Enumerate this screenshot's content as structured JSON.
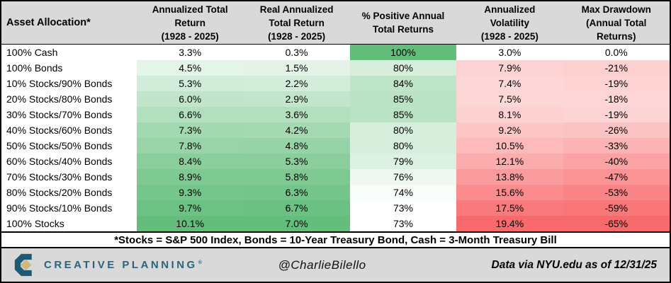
{
  "chart_data": {
    "type": "table",
    "columns": [
      {
        "label": "Asset Allocation*",
        "align": "left",
        "scale": null
      },
      {
        "label": "Annualized Total\nReturn\n(1928 - 2025)",
        "scale": {
          "min": 3.3,
          "max": 10.1,
          "color": "green",
          "abs": false
        }
      },
      {
        "label": "Real Annualized\nTotal Return\n(1928 - 2025)",
        "scale": {
          "min": 0.3,
          "max": 7.0,
          "color": "green",
          "abs": false
        }
      },
      {
        "label": "% Positive Annual\nTotal Returns",
        "scale": {
          "min": 73,
          "max": 100,
          "color": "green",
          "abs": false
        }
      },
      {
        "label": "Annualized\nVolatility\n(1928 - 2025)",
        "scale": {
          "min": 3.0,
          "max": 19.4,
          "color": "red",
          "abs": false
        }
      },
      {
        "label": "Max Drawdown\n(Annual Total\nReturns)",
        "scale": {
          "min": 0,
          "max": 65,
          "color": "red",
          "abs": true
        }
      }
    ],
    "rows": [
      {
        "allocation": "100% Cash",
        "values": [
          3.3,
          0.3,
          100,
          3.0,
          0.0
        ],
        "display": [
          "3.3%",
          "0.3%",
          "100%",
          "3.0%",
          "0.0%"
        ]
      },
      {
        "allocation": "100% Bonds",
        "values": [
          4.5,
          1.5,
          80,
          7.9,
          -21
        ],
        "display": [
          "4.5%",
          "1.5%",
          "80%",
          "7.9%",
          "-21%"
        ]
      },
      {
        "allocation": "10% Stocks/90% Bonds",
        "values": [
          5.3,
          2.2,
          84,
          7.4,
          -19
        ],
        "display": [
          "5.3%",
          "2.2%",
          "84%",
          "7.4%",
          "-19%"
        ]
      },
      {
        "allocation": "20% Stocks/80% Bonds",
        "values": [
          6.0,
          2.9,
          85,
          7.5,
          -18
        ],
        "display": [
          "6.0%",
          "2.9%",
          "85%",
          "7.5%",
          "-18%"
        ]
      },
      {
        "allocation": "30% Stocks/70% Bonds",
        "values": [
          6.6,
          3.6,
          85,
          8.1,
          -19
        ],
        "display": [
          "6.6%",
          "3.6%",
          "85%",
          "8.1%",
          "-19%"
        ]
      },
      {
        "allocation": "40% Stocks/60% Bonds",
        "values": [
          7.3,
          4.2,
          80,
          9.2,
          -26
        ],
        "display": [
          "7.3%",
          "4.2%",
          "80%",
          "9.2%",
          "-26%"
        ]
      },
      {
        "allocation": "50% Stocks/50% Bonds",
        "values": [
          7.8,
          4.8,
          80,
          10.5,
          -33
        ],
        "display": [
          "7.8%",
          "4.8%",
          "80%",
          "10.5%",
          "-33%"
        ]
      },
      {
        "allocation": "60% Stocks/40% Bonds",
        "values": [
          8.4,
          5.3,
          79,
          12.1,
          -40
        ],
        "display": [
          "8.4%",
          "5.3%",
          "79%",
          "12.1%",
          "-40%"
        ]
      },
      {
        "allocation": "70% Stocks/30% Bonds",
        "values": [
          8.9,
          5.8,
          76,
          13.8,
          -47
        ],
        "display": [
          "8.9%",
          "5.8%",
          "76%",
          "13.8%",
          "-47%"
        ]
      },
      {
        "allocation": "80% Stocks/20% Bonds",
        "values": [
          9.3,
          6.3,
          74,
          15.6,
          -53
        ],
        "display": [
          "9.3%",
          "6.3%",
          "74%",
          "15.6%",
          "-53%"
        ]
      },
      {
        "allocation": "90% Stocks/10% Bonds",
        "values": [
          9.7,
          6.7,
          73,
          17.5,
          -59
        ],
        "display": [
          "9.7%",
          "6.7%",
          "73%",
          "17.5%",
          "-59%"
        ]
      },
      {
        "allocation": "100% Stocks",
        "values": [
          10.1,
          7.0,
          73,
          19.4,
          -65
        ],
        "display": [
          "10.1%",
          "7.0%",
          "73%",
          "19.4%",
          "-65%"
        ]
      }
    ],
    "footnote": "*Stocks = S&P 500 Index, Bonds = 10-Year Treasury Bond, Cash = 3-Month Treasury Bill"
  },
  "colors": {
    "header_bg": "#D9D9D9",
    "bar_bg": "#D9D9D9",
    "green_max": "#63BE7B",
    "red_max": "#F8696B",
    "neutral": "#FFFFFF",
    "border": "#000000",
    "brand_teal": "#1E5B72",
    "brand_gold": "#D3B57E",
    "brand_text": "#29647C"
  },
  "footer": {
    "brand": "CREATIVE PLANNING",
    "brand_mark": "®",
    "handle": "@CharlieBilello",
    "source": "Data via NYU.edu as of 12/31/25"
  }
}
